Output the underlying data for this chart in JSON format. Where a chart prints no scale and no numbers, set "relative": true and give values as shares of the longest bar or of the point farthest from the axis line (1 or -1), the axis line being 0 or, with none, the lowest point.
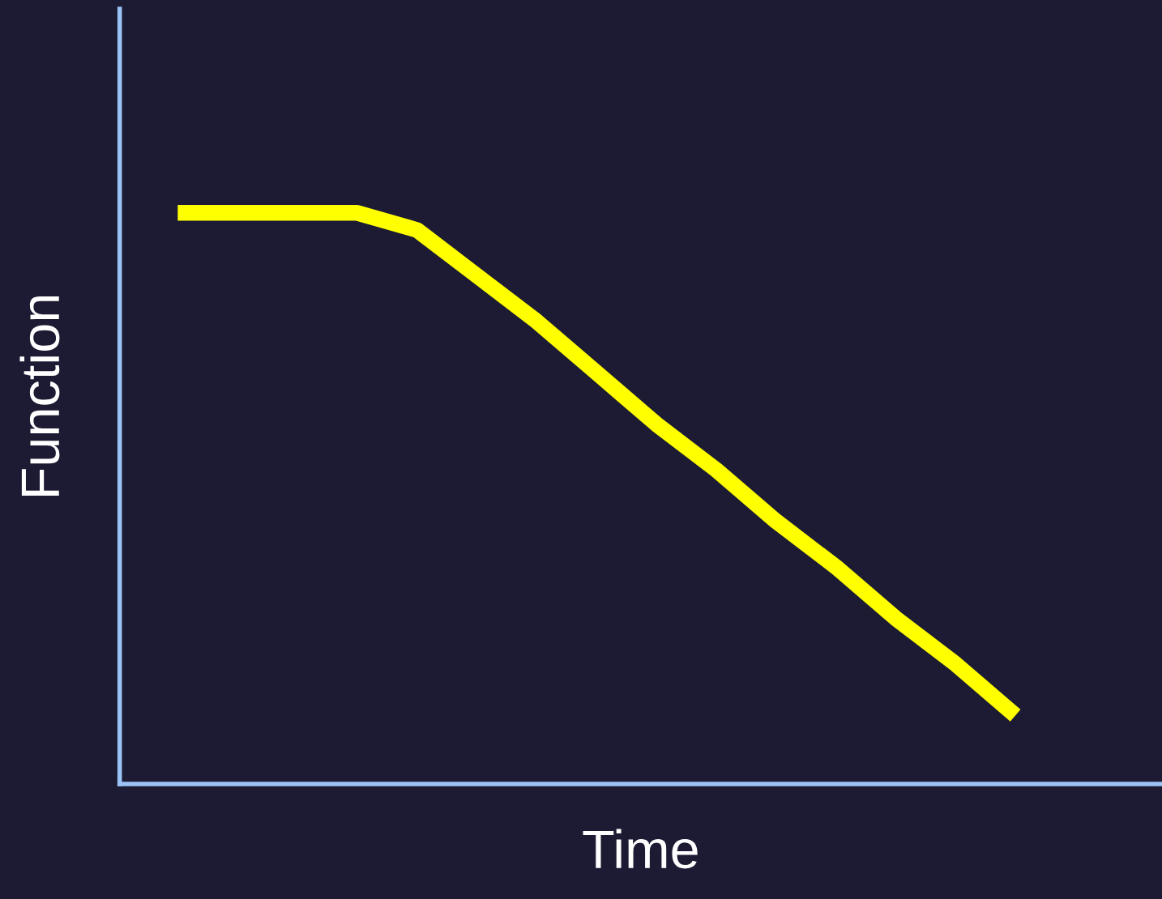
{
  "chart_data": {
    "type": "line",
    "xlabel": "Time",
    "ylabel": "Function",
    "relative": true,
    "categories": [
      null,
      null,
      null,
      null,
      null,
      null,
      null,
      null,
      null,
      null,
      null,
      null,
      null,
      null,
      null
    ],
    "series": [
      {
        "color": "#ffff00",
        "values": [
          1,
          1,
          1,
          1,
          0.97,
          0.89,
          0.81,
          0.72,
          0.63,
          0.55,
          0.46,
          0.38,
          0.29,
          0.21,
          0.12
        ]
      }
    ],
    "grid": false,
    "legend": false,
    "marker": "none",
    "line_style": "solid",
    "tick_labels": false
  }
}
